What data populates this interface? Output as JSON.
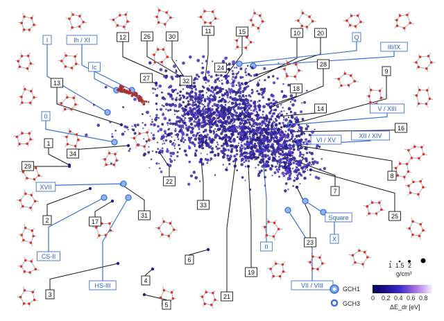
{
  "chart_data": {
    "type": "scatter",
    "title": "",
    "xlabel": "",
    "ylabel": "",
    "grid": false,
    "point_colormap": "ΔE_dr [eV] (0 to 0.8)",
    "black_labels": [
      "1",
      "2",
      "3",
      "4",
      "5",
      "6",
      "7",
      "8",
      "9",
      "10",
      "11",
      "12",
      "13",
      "14",
      "15",
      "16",
      "17",
      "18",
      "19",
      "20",
      "21",
      "22",
      "23",
      "24",
      "25",
      "26",
      "27",
      "28",
      "29",
      "30",
      "31",
      "32",
      "33",
      "34"
    ],
    "blue_labels": [
      "I",
      "Ih / XI",
      "Ic",
      "0",
      "XVII",
      "CS-II",
      "HS-III",
      "II",
      "VII / VIII",
      "X",
      "Square",
      "VI / XV",
      "XII / XIV",
      "V / XIII",
      "III/IX",
      "Q"
    ],
    "legend": {
      "density_title": "g/cm³",
      "density_ticks": [
        "1",
        "1.5",
        "2"
      ],
      "gch1_label": "GCH1",
      "gch3_label": "GCH3",
      "colorbar_ticks": [
        "0",
        "0.2",
        "0.4",
        "0.6",
        "0.8"
      ],
      "colorbar_label": "ΔE_dr [eV]"
    }
  },
  "colors": {
    "point_low": "#1a1a6e",
    "point_mid": "#4f2fd0",
    "point_high": "#a62f2f",
    "blue_line": "#3b6fd6",
    "black_line": "#111111",
    "atom_red": "#e03030"
  }
}
